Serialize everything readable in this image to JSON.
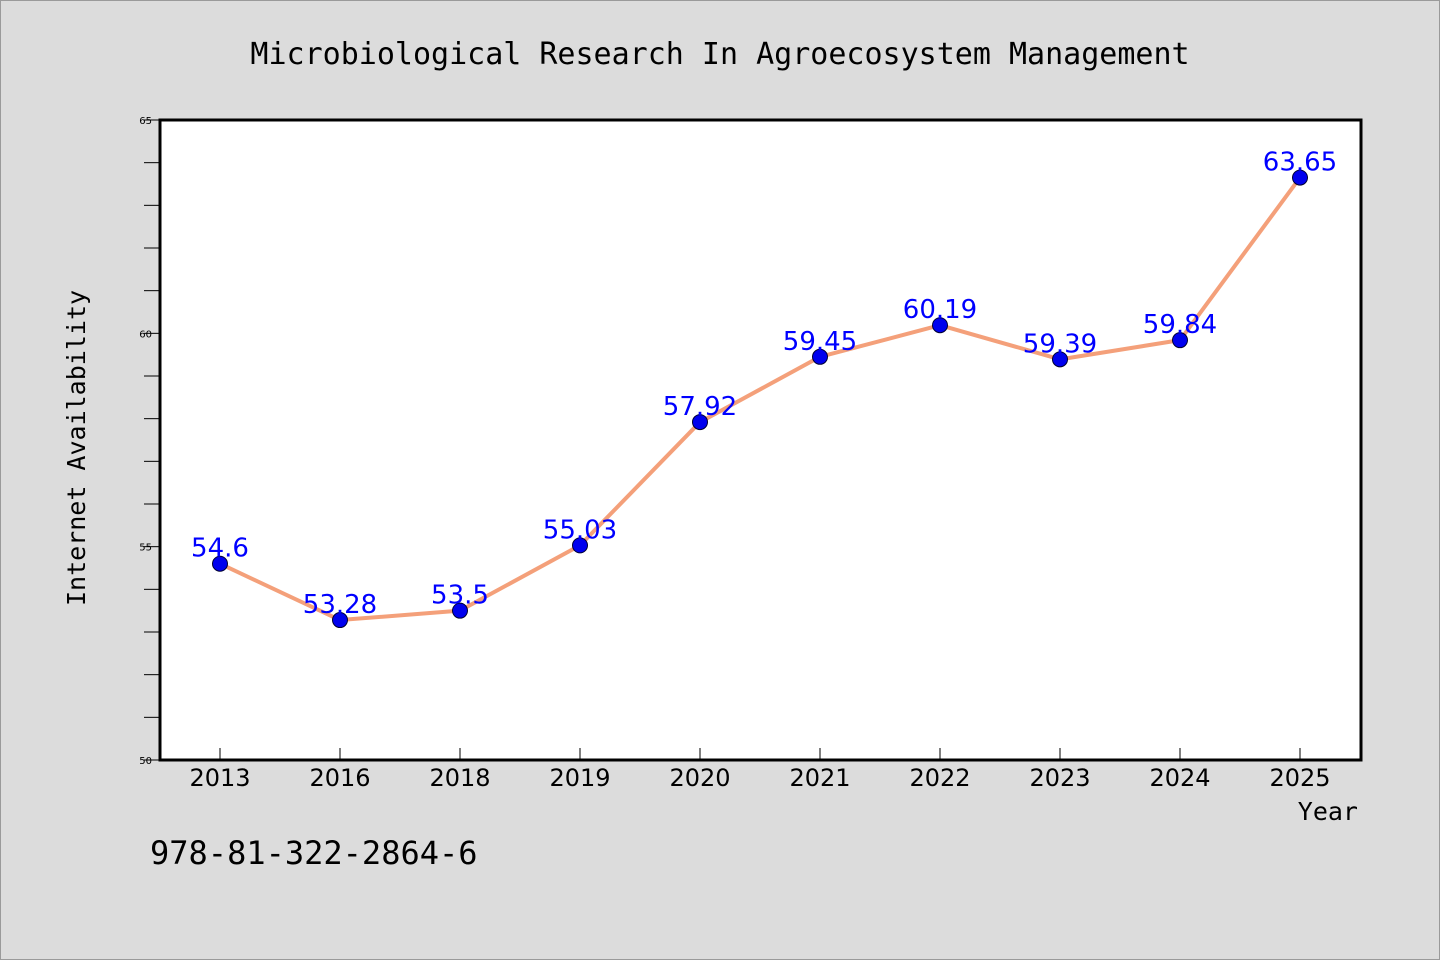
{
  "chart_data": {
    "type": "line",
    "title": "Microbiological Research In Agroecosystem Management",
    "xlabel": "Year",
    "ylabel": "Internet Availability",
    "categories": [
      "2013",
      "2016",
      "2018",
      "2019",
      "2020",
      "2021",
      "2022",
      "2023",
      "2024",
      "2025"
    ],
    "values": [
      54.6,
      53.28,
      53.5,
      55.03,
      57.92,
      59.45,
      60.19,
      59.39,
      59.84,
      63.65
    ],
    "data_labels": [
      "54.6",
      "53.28",
      "53.5",
      "55.03",
      "57.92",
      "59.45",
      "60.19",
      "59.39",
      "59.84",
      "63.65"
    ],
    "ylim": [
      50,
      65
    ],
    "yticks": [
      "50",
      "55",
      "60",
      "65"
    ],
    "grid": false,
    "line_color": "#f4a07a",
    "marker_color": "#0000ee",
    "label_color": "#0000ff"
  },
  "footer": {
    "isbn": "978-81-322-2864-6"
  }
}
